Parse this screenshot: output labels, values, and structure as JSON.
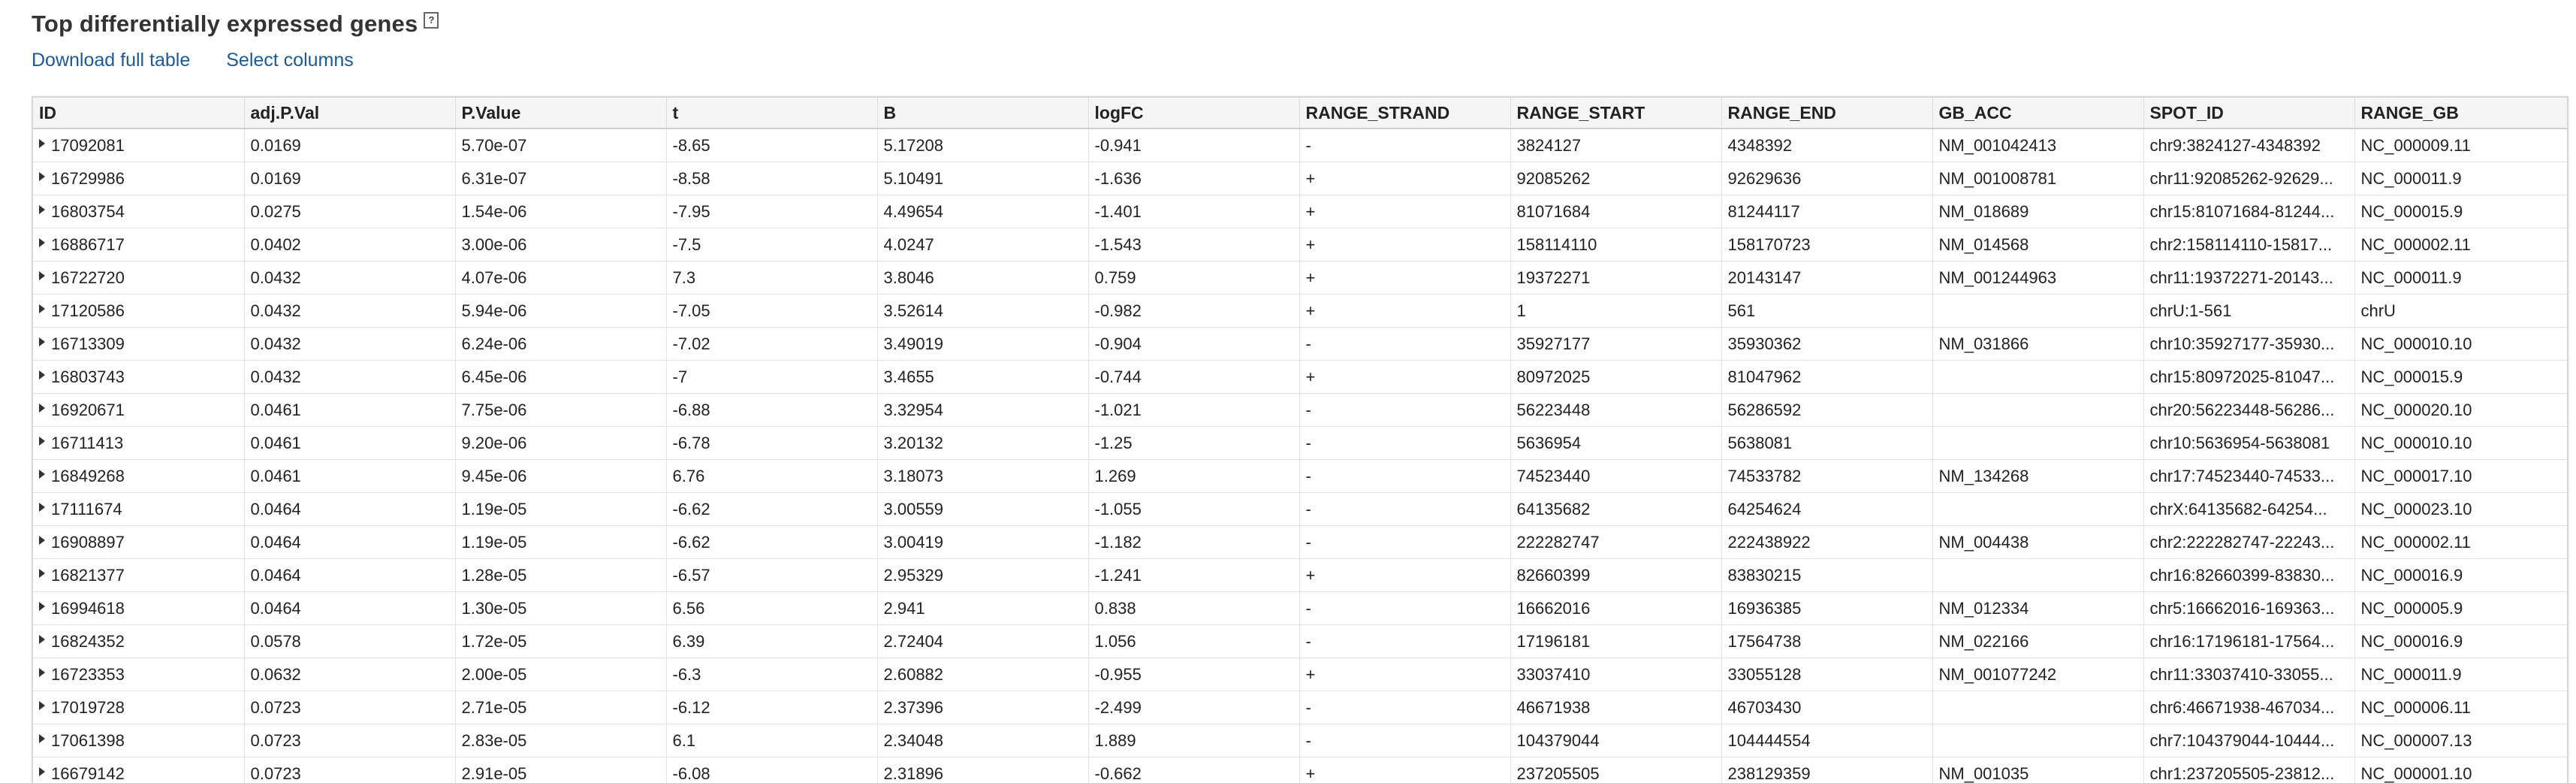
{
  "title": "Top differentially expressed genes",
  "help_icon": {
    "name": "help-icon",
    "glyph": "?"
  },
  "links": {
    "download": "Download full table",
    "select_columns": "Select columns"
  },
  "colors": {
    "link": "#1c5a96",
    "border": "#d7d7d7"
  },
  "table": {
    "columns": [
      "ID",
      "adj.P.Val",
      "P.Value",
      "t",
      "B",
      "logFC",
      "RANGE_STRAND",
      "RANGE_START",
      "RANGE_END",
      "GB_ACC",
      "SPOT_ID",
      "RANGE_GB"
    ],
    "rows": [
      [
        "17092081",
        "0.0169",
        "5.70e-07",
        "-8.65",
        "5.17208",
        "-0.941",
        "-",
        "3824127",
        "4348392",
        "NM_001042413",
        "chr9:3824127-4348392",
        "NC_000009.11"
      ],
      [
        "16729986",
        "0.0169",
        "6.31e-07",
        "-8.58",
        "5.10491",
        "-1.636",
        "+",
        "92085262",
        "92629636",
        "NM_001008781",
        "chr11:92085262-92629...",
        "NC_000011.9"
      ],
      [
        "16803754",
        "0.0275",
        "1.54e-06",
        "-7.95",
        "4.49654",
        "-1.401",
        "+",
        "81071684",
        "81244117",
        "NM_018689",
        "chr15:81071684-81244...",
        "NC_000015.9"
      ],
      [
        "16886717",
        "0.0402",
        "3.00e-06",
        "-7.5",
        "4.0247",
        "-1.543",
        "+",
        "158114110",
        "158170723",
        "NM_014568",
        "chr2:158114110-15817...",
        "NC_000002.11"
      ],
      [
        "16722720",
        "0.0432",
        "4.07e-06",
        "7.3",
        "3.8046",
        "0.759",
        "+",
        "19372271",
        "20143147",
        "NM_001244963",
        "chr11:19372271-20143...",
        "NC_000011.9"
      ],
      [
        "17120586",
        "0.0432",
        "5.94e-06",
        "-7.05",
        "3.52614",
        "-0.982",
        "+",
        "1",
        "561",
        "",
        "chrU:1-561",
        "chrU"
      ],
      [
        "16713309",
        "0.0432",
        "6.24e-06",
        "-7.02",
        "3.49019",
        "-0.904",
        "-",
        "35927177",
        "35930362",
        "NM_031866",
        "chr10:35927177-35930...",
        "NC_000010.10"
      ],
      [
        "16803743",
        "0.0432",
        "6.45e-06",
        "-7",
        "3.4655",
        "-0.744",
        "+",
        "80972025",
        "81047962",
        "",
        "chr15:80972025-81047...",
        "NC_000015.9"
      ],
      [
        "16920671",
        "0.0461",
        "7.75e-06",
        "-6.88",
        "3.32954",
        "-1.021",
        "-",
        "56223448",
        "56286592",
        "",
        "chr20:56223448-56286...",
        "NC_000020.10"
      ],
      [
        "16711413",
        "0.0461",
        "9.20e-06",
        "-6.78",
        "3.20132",
        "-1.25",
        "-",
        "5636954",
        "5638081",
        "",
        "chr10:5636954-5638081",
        "NC_000010.10"
      ],
      [
        "16849268",
        "0.0461",
        "9.45e-06",
        "6.76",
        "3.18073",
        "1.269",
        "-",
        "74523440",
        "74533782",
        "NM_134268",
        "chr17:74523440-74533...",
        "NC_000017.10"
      ],
      [
        "17111674",
        "0.0464",
        "1.19e-05",
        "-6.62",
        "3.00559",
        "-1.055",
        "-",
        "64135682",
        "64254624",
        "",
        "chrX:64135682-64254...",
        "NC_000023.10"
      ],
      [
        "16908897",
        "0.0464",
        "1.19e-05",
        "-6.62",
        "3.00419",
        "-1.182",
        "-",
        "222282747",
        "222438922",
        "NM_004438",
        "chr2:222282747-22243...",
        "NC_000002.11"
      ],
      [
        "16821377",
        "0.0464",
        "1.28e-05",
        "-6.57",
        "2.95329",
        "-1.241",
        "+",
        "82660399",
        "83830215",
        "",
        "chr16:82660399-83830...",
        "NC_000016.9"
      ],
      [
        "16994618",
        "0.0464",
        "1.30e-05",
        "6.56",
        "2.941",
        "0.838",
        "-",
        "16662016",
        "16936385",
        "NM_012334",
        "chr5:16662016-169363...",
        "NC_000005.9"
      ],
      [
        "16824352",
        "0.0578",
        "1.72e-05",
        "6.39",
        "2.72404",
        "1.056",
        "-",
        "17196181",
        "17564738",
        "NM_022166",
        "chr16:17196181-17564...",
        "NC_000016.9"
      ],
      [
        "16723353",
        "0.0632",
        "2.00e-05",
        "-6.3",
        "2.60882",
        "-0.955",
        "+",
        "33037410",
        "33055128",
        "NM_001077242",
        "chr11:33037410-33055...",
        "NC_000011.9"
      ],
      [
        "17019728",
        "0.0723",
        "2.71e-05",
        "-6.12",
        "2.37396",
        "-2.499",
        "-",
        "46671938",
        "46703430",
        "",
        "chr6:46671938-467034...",
        "NC_000006.11"
      ],
      [
        "17061398",
        "0.0723",
        "2.83e-05",
        "6.1",
        "2.34048",
        "1.889",
        "-",
        "104379044",
        "104444554",
        "",
        "chr7:104379044-10444...",
        "NC_000007.13"
      ],
      [
        "16679142",
        "0.0723",
        "2.91e-05",
        "-6.08",
        "2.31896",
        "-0.662",
        "+",
        "237205505",
        "238129359",
        "NM_001035",
        "chr1:237205505-23812...",
        "NC_000001.10"
      ]
    ]
  }
}
